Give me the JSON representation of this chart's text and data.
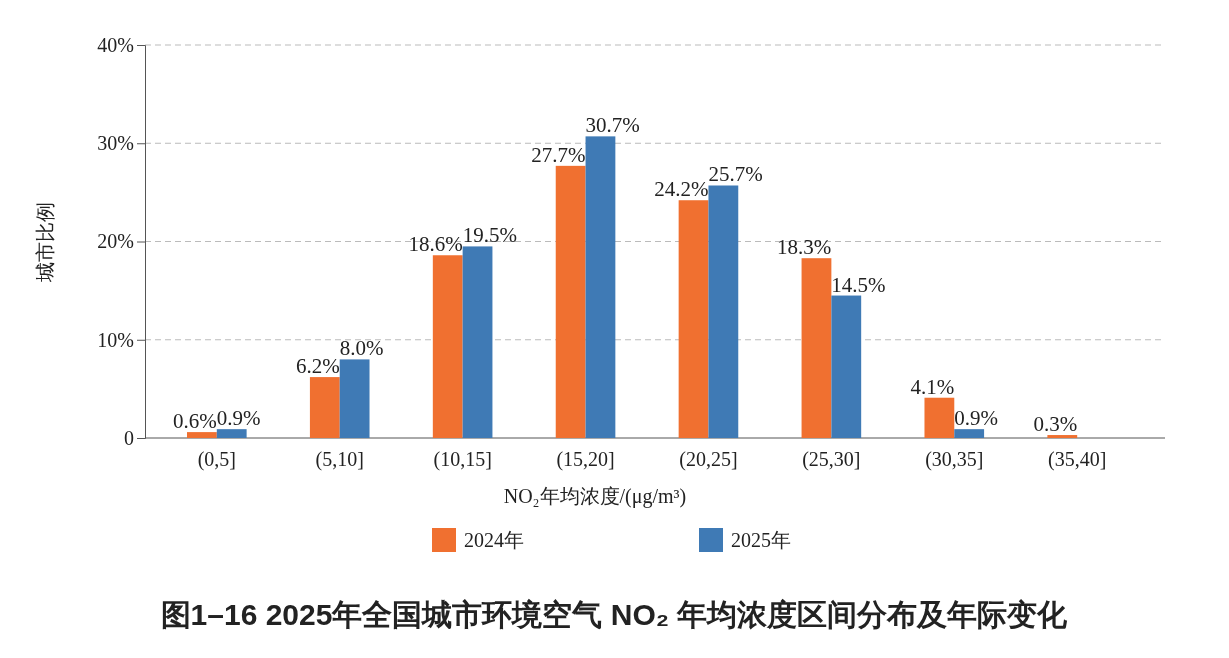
{
  "chart_data": {
    "type": "bar",
    "title": "图1–16  2025年全国城市环境空气 NO₂ 年均浓度区间分布及年际变化",
    "xlabel": "NO₂年均浓度/(μg/m³)",
    "ylabel": "城市比例",
    "categories": [
      "(0,5]",
      "(5,10]",
      "(10,15]",
      "(15,20]",
      "(20,25]",
      "(25,30]",
      "(30,35]",
      "(35,40]"
    ],
    "series": [
      {
        "name": "2024年",
        "color": "#f07030",
        "values": [
          0.6,
          6.2,
          18.6,
          27.7,
          24.2,
          18.3,
          4.1,
          0.3
        ],
        "value_labels": [
          "0.6%",
          "6.2%",
          "18.6%",
          "27.7%",
          "24.2%",
          "18.3%",
          "4.1%",
          "0.3%"
        ]
      },
      {
        "name": "2025年",
        "color": "#3f7ab5",
        "values": [
          0.9,
          8.0,
          19.5,
          30.7,
          25.7,
          14.5,
          0.9,
          null
        ],
        "value_labels": [
          "0.9%",
          "8.0%",
          "19.5%",
          "30.7%",
          "25.7%",
          "14.5%",
          "0.9%",
          null
        ]
      }
    ],
    "ylim": [
      0,
      40
    ],
    "yticks": [
      0,
      {
        "value": 10,
        "label": "10%"
      },
      {
        "value": 20,
        "label": "20%"
      },
      {
        "value": 30,
        "label": "30%"
      },
      {
        "value": 40,
        "label": "40%"
      }
    ],
    "grid": "y",
    "legend": "bottom"
  }
}
